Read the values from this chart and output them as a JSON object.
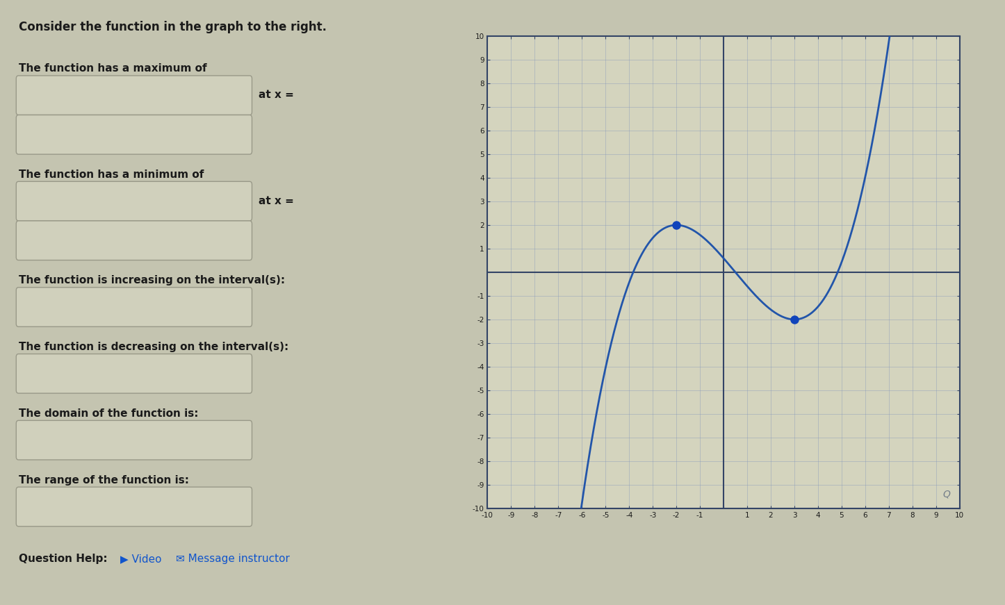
{
  "title": "Consider the function in the graph to the right.",
  "graph_xlim": [
    -10,
    10
  ],
  "graph_ylim": [
    -10,
    10
  ],
  "graph_bg": "#d4d4be",
  "graph_line_color": "#2255aa",
  "graph_dot_color": "#1144bb",
  "page_bg": "#c4c4b0",
  "box_bg": "#d0d0bc",
  "box_border": "#999988",
  "text_color": "#1a1a1a",
  "max_point": [
    -2,
    2
  ],
  "min_point": [
    3,
    -2
  ],
  "a_coeff": 0.192,
  "C_val": 0.592,
  "graph_border_color": "#334466",
  "axis_color": "#334466",
  "grid_color": "#8899bb",
  "tick_label_color": "#1a1a1a"
}
